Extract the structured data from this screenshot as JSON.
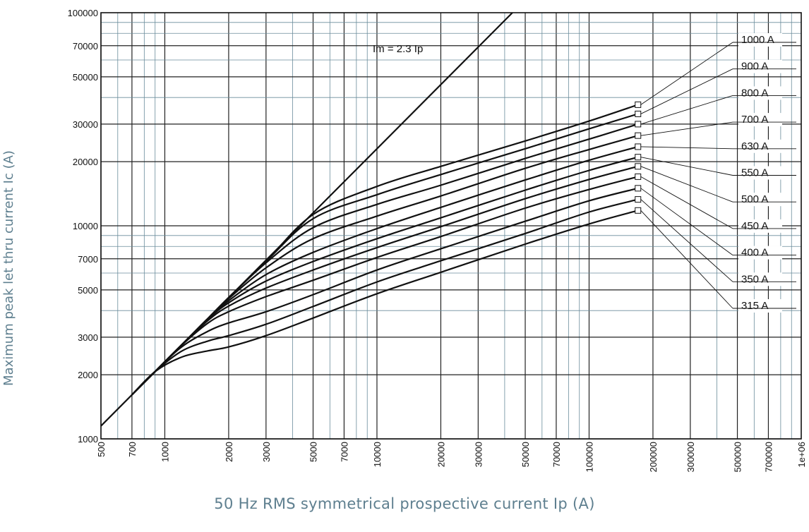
{
  "chart_data": {
    "type": "line",
    "xscale": "log",
    "yscale": "log",
    "xlim": [
      500,
      1000000
    ],
    "ylim": [
      1000,
      100000
    ],
    "xlabel": "50 Hz RMS symmetrical prospective current Ip (A)",
    "ylabel": "Maximum peak let thru current Ic (A)",
    "x_ticks": [
      "500",
      "700",
      "1000",
      "2000",
      "3000",
      "5000",
      "7000",
      "10000",
      "20000",
      "30000",
      "50000",
      "70000",
      "100000",
      "200000",
      "300000",
      "500000",
      "700000",
      "1e+06"
    ],
    "y_ticks": [
      "1000",
      "2000",
      "3000",
      "5000",
      "7000",
      "10000",
      "20000",
      "30000",
      "50000",
      "70000",
      "100000"
    ],
    "grid": true,
    "reference_line": {
      "label": "Im = 2.3 Ip",
      "x": [
        500,
        43500
      ],
      "y": [
        1150,
        100000
      ]
    },
    "series": [
      {
        "name": "315 A",
        "x": [
          700,
          900,
          1200,
          1600,
          2000,
          3000,
          5000,
          10000,
          20000,
          50000,
          100000,
          170000
        ],
        "y": [
          1610,
          2070,
          2420,
          2590,
          2700,
          3050,
          3690,
          4800,
          6050,
          8200,
          10200,
          11800
        ]
      },
      {
        "name": "350 A",
        "x": [
          700,
          900,
          1200,
          1600,
          2000,
          3000,
          5000,
          10000,
          20000,
          50000,
          100000,
          170000
        ],
        "y": [
          1610,
          2070,
          2580,
          2880,
          3050,
          3450,
          4180,
          5450,
          6850,
          9200,
          11600,
          13300
        ]
      },
      {
        "name": "400 A",
        "x": [
          700,
          900,
          1200,
          1600,
          2000,
          3000,
          5000,
          10000,
          20000,
          50000,
          100000,
          170000
        ],
        "y": [
          1610,
          2070,
          2700,
          3200,
          3500,
          3950,
          4750,
          6200,
          7800,
          10500,
          13100,
          15000
        ]
      },
      {
        "name": "450 A",
        "x": [
          700,
          900,
          1200,
          1600,
          2000,
          3000,
          5000,
          10000,
          20000,
          50000,
          100000,
          170000
        ],
        "y": [
          1610,
          2070,
          2750,
          3500,
          3950,
          4650,
          5550,
          7100,
          8900,
          12100,
          14800,
          17000
        ]
      },
      {
        "name": "500 A",
        "x": [
          700,
          900,
          1200,
          1600,
          2000,
          3000,
          5000,
          10000,
          20000,
          50000,
          100000,
          170000
        ],
        "y": [
          1610,
          2070,
          2760,
          3600,
          4200,
          5100,
          6200,
          7900,
          9900,
          13400,
          16500,
          19000
        ]
      },
      {
        "name": "550 A",
        "x": [
          700,
          900,
          1200,
          1600,
          2000,
          3000,
          5000,
          10000,
          20000,
          50000,
          100000,
          170000
        ],
        "y": [
          1610,
          2070,
          2760,
          3650,
          4350,
          5500,
          6800,
          8700,
          10900,
          14700,
          18200,
          21000
        ]
      },
      {
        "name": "630 A",
        "x": [
          700,
          900,
          1200,
          1600,
          2000,
          3000,
          5000,
          10000,
          20000,
          50000,
          100000,
          170000
        ],
        "y": [
          1610,
          2070,
          2760,
          3680,
          4450,
          5900,
          7500,
          9700,
          12200,
          16400,
          20300,
          23500
        ]
      },
      {
        "name": "700 A",
        "x": [
          700,
          900,
          1200,
          1600,
          2000,
          3000,
          5000,
          10000,
          20000,
          50000,
          100000,
          170000
        ],
        "y": [
          1610,
          2070,
          2760,
          3680,
          4550,
          6350,
          8700,
          11100,
          13800,
          18600,
          22800,
          26500
        ]
      },
      {
        "name": "800 A",
        "x": [
          700,
          900,
          1200,
          1600,
          2000,
          3000,
          5000,
          10000,
          20000,
          50000,
          100000,
          170000
        ],
        "y": [
          1610,
          2070,
          2760,
          3680,
          4600,
          6700,
          9800,
          12600,
          15500,
          20700,
          25500,
          30000
        ]
      },
      {
        "name": "900 A",
        "x": [
          700,
          900,
          1200,
          1600,
          2000,
          3000,
          5000,
          10000,
          20000,
          50000,
          100000,
          170000
        ],
        "y": [
          1610,
          2070,
          2760,
          3680,
          4600,
          6800,
          10800,
          14000,
          17400,
          23000,
          28500,
          33500
        ]
      },
      {
        "name": "1000 A",
        "x": [
          700,
          900,
          1200,
          1600,
          2000,
          3000,
          5000,
          10000,
          20000,
          50000,
          100000,
          170000
        ],
        "y": [
          1610,
          2070,
          2760,
          3680,
          4600,
          6800,
          11300,
          15300,
          19000,
          25000,
          31000,
          37000
        ]
      }
    ]
  }
}
